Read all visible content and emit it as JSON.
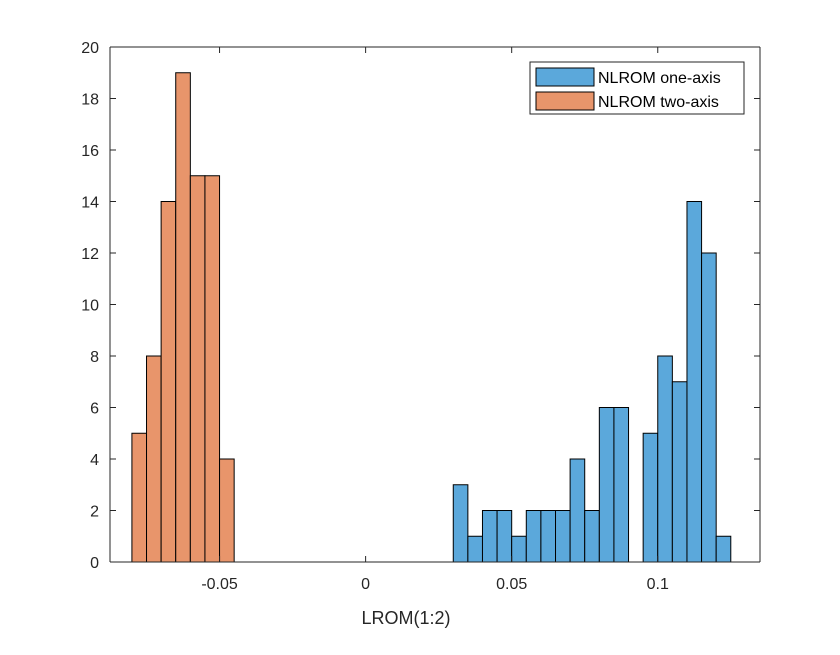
{
  "chart_data": {
    "type": "histogram",
    "title": "",
    "xlabel": "LROM(1:2)",
    "ylabel": "",
    "xlim": [
      -0.0875,
      0.135
    ],
    "ylim": [
      0,
      20
    ],
    "x_ticks": [
      -0.05,
      0,
      0.05,
      0.1
    ],
    "x_tick_labels": [
      "-0.05",
      "0",
      "0.05",
      "0.1"
    ],
    "y_ticks": [
      0,
      2,
      4,
      6,
      8,
      10,
      12,
      14,
      16,
      18,
      20
    ],
    "y_tick_labels": [
      "0",
      "2",
      "4",
      "6",
      "8",
      "10",
      "12",
      "14",
      "16",
      "18",
      "20"
    ],
    "bin_width": 0.005,
    "legend_location": "top-right",
    "series": [
      {
        "name": "NLROM one-axis",
        "color": "#5ba8db",
        "bin_start": 0.03,
        "counts": [
          3,
          1,
          2,
          2,
          1,
          2,
          2,
          2,
          4,
          2,
          6,
          6,
          0,
          5,
          8,
          7,
          14,
          12,
          1
        ]
      },
      {
        "name": "NLROM two-axis",
        "color": "#e8956b",
        "bin_start": -0.08,
        "counts": [
          5,
          8,
          14,
          19,
          15,
          15,
          4
        ]
      }
    ]
  }
}
